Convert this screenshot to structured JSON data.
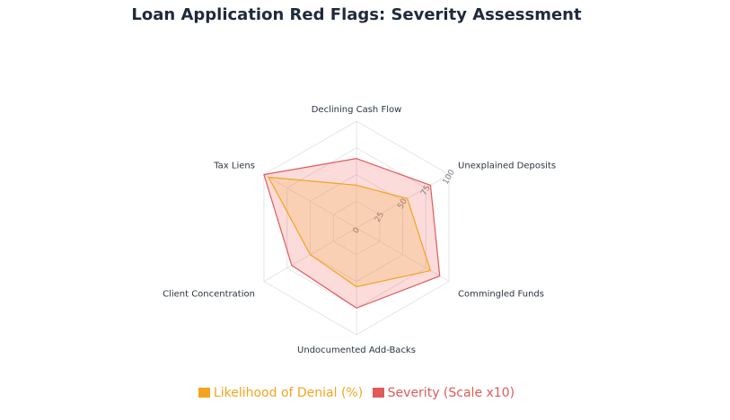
{
  "chart_data": {
    "type": "radar",
    "title": "Loan Application Red Flags: Severity Assessment",
    "categories": [
      "Declining Cash Flow",
      "Unexplained Deposits",
      "Commingled Funds",
      "Undocumented Add-Backs",
      "Client Concentration",
      "Tax Liens"
    ],
    "rlim": [
      0,
      100
    ],
    "r_ticks": [
      "0",
      "25",
      "50",
      "75",
      "100"
    ],
    "grid": true,
    "legend_position": "bottom",
    "series": [
      {
        "name": "Likelihood of Denial (%)",
        "values": [
          40,
          55,
          80,
          55,
          50,
          95
        ],
        "color": "#f5a31e"
      },
      {
        "name": "Severity (Scale x10)",
        "values": [
          65,
          80,
          90,
          75,
          70,
          100
        ],
        "color": "#e05a5a"
      }
    ]
  }
}
